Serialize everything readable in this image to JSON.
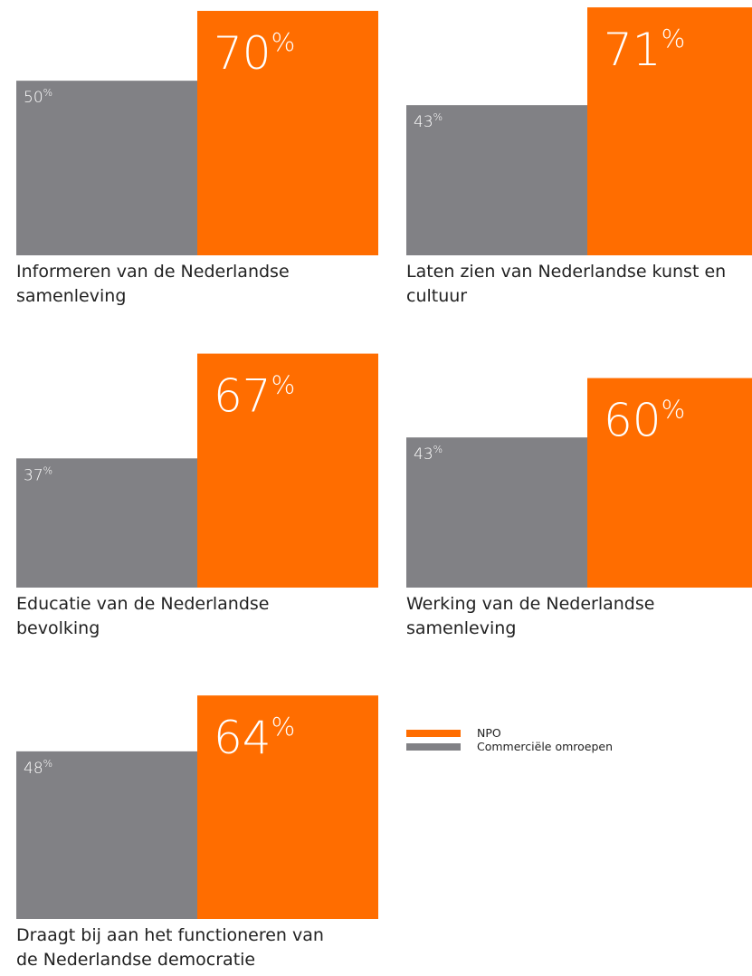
{
  "chart_data": {
    "type": "bar",
    "categories": [
      "Informeren van de Nederlandse samenleving",
      "Laten zien van Nederlandse kunst en cultuur",
      "Educatie van de Nederlandse bevolking",
      "Werking van de Nederlandse samenleving",
      "Draagt bij aan het functioneren van de Nederlandse democratie"
    ],
    "series": [
      {
        "name": "NPO",
        "color": "#ff6d00",
        "values": [
          70,
          71,
          67,
          60,
          64
        ]
      },
      {
        "name": "Commerciële omroepen",
        "color": "#818185",
        "values": [
          50,
          43,
          37,
          43,
          48
        ]
      }
    ],
    "unit": "%",
    "ylim": [
      0,
      100
    ]
  }
}
